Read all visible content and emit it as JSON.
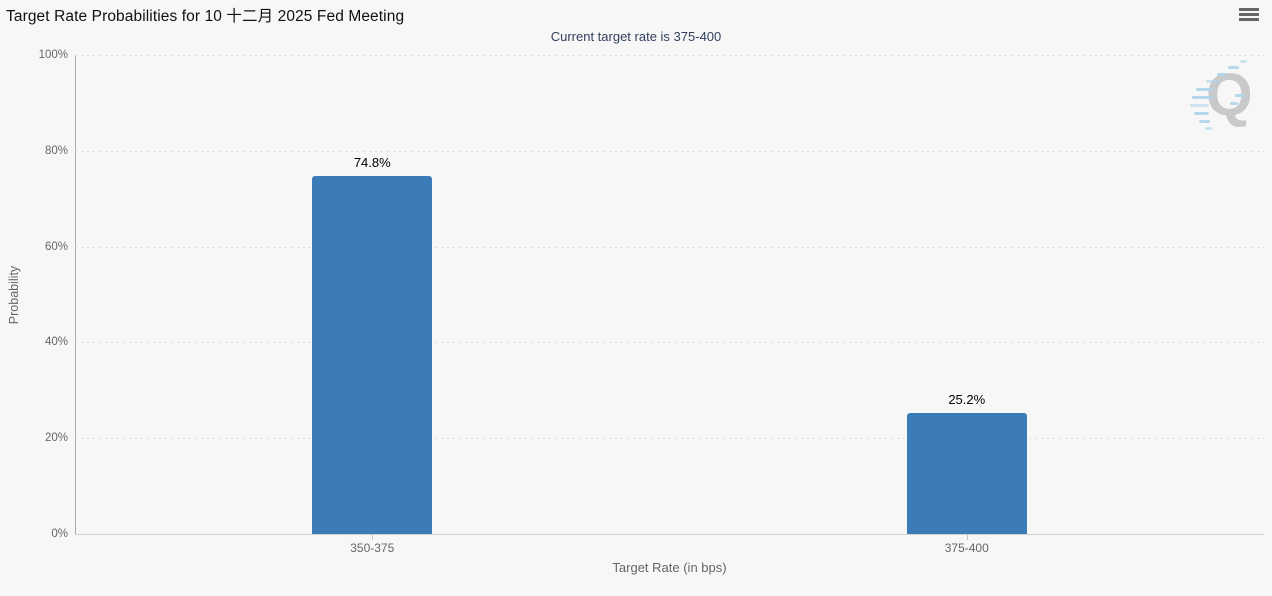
{
  "header": {
    "title": "Target Rate Probabilities for 10 十二月 2025 Fed Meeting",
    "subtitle": "Current target rate is 375-400"
  },
  "watermark": {
    "letter": "Q"
  },
  "chart_data": {
    "type": "bar",
    "categories": [
      "350-375",
      "375-400"
    ],
    "values": [
      74.8,
      25.2
    ],
    "value_labels": [
      "74.8%",
      "25.2%"
    ],
    "title": "Target Rate Probabilities for 10 十二月 2025 Fed Meeting",
    "subtitle": "Current target rate is 375-400",
    "xlabel": "Target Rate (in bps)",
    "ylabel": "Probability",
    "ylim": [
      0,
      100
    ],
    "yticks": [
      0,
      20,
      40,
      60,
      80,
      100
    ],
    "ytick_labels": [
      "0%",
      "20%",
      "40%",
      "60%",
      "80%",
      "100%"
    ],
    "grid": "horizontal-dotted",
    "legend": "none",
    "bar_color": "#3b7cb8",
    "subtitle_color": "#32415e"
  }
}
